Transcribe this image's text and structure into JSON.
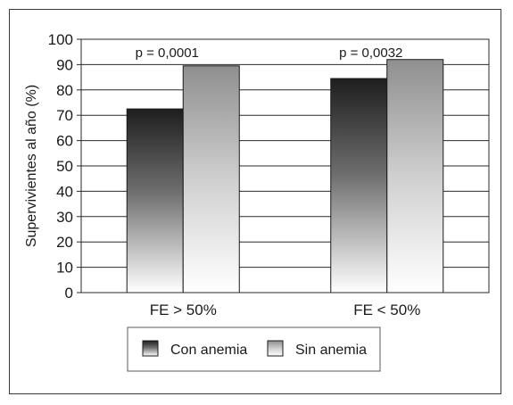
{
  "chart_data": {
    "type": "bar",
    "title": "",
    "xlabel": "",
    "ylabel": "Supervivientes al año (%)",
    "ylim": [
      0,
      100
    ],
    "yticks": [
      0,
      10,
      20,
      30,
      40,
      50,
      60,
      70,
      80,
      90,
      100
    ],
    "categories": [
      "FE > 50%",
      "FE < 50%"
    ],
    "series": [
      {
        "name": "Con anemia",
        "values": [
          72.5,
          84.5
        ],
        "color": "#2b2b2b"
      },
      {
        "name": "Sin anemia",
        "values": [
          89.5,
          92
        ],
        "color": "#9a9a9a"
      }
    ],
    "annotations": [
      "p = 0,0001",
      "p = 0,0032"
    ],
    "grid": true,
    "legend_position": "bottom"
  }
}
